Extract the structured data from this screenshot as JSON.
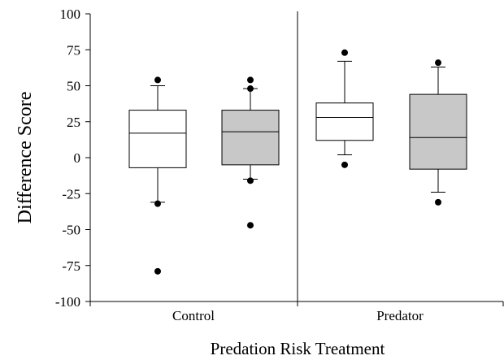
{
  "chart_data": {
    "type": "box",
    "title": "",
    "xlabel": "Predation Risk Treatment",
    "ylabel": "Difference Score",
    "ylim": [
      -100,
      100
    ],
    "yticks": [
      100,
      75,
      50,
      25,
      0,
      -25,
      -50,
      -75,
      -100
    ],
    "groups": [
      "Control",
      "Predator"
    ],
    "series_colors": [
      "#ffffff",
      "#c8c8c8"
    ],
    "boxes": [
      {
        "group": "Control",
        "fill": "#ffffff",
        "whisker_low": -31,
        "q1": -7,
        "median": 17,
        "q3": 33,
        "whisker_high": 50,
        "outliers": [
          54,
          -32,
          -79
        ]
      },
      {
        "group": "Control",
        "fill": "#c8c8c8",
        "whisker_low": -15,
        "q1": -5,
        "median": 18,
        "q3": 33,
        "whisker_high": 48,
        "outliers": [
          54,
          48,
          -16,
          -47
        ]
      },
      {
        "group": "Predator",
        "fill": "#ffffff",
        "whisker_low": 2,
        "q1": 12,
        "median": 28,
        "q3": 38,
        "whisker_high": 67,
        "outliers": [
          73,
          -5
        ]
      },
      {
        "group": "Predator",
        "fill": "#c8c8c8",
        "whisker_low": -24,
        "q1": -8,
        "median": 14,
        "q3": 44,
        "whisker_high": 63,
        "outliers": [
          66,
          -31
        ]
      }
    ],
    "grid": false,
    "legend": "none"
  }
}
